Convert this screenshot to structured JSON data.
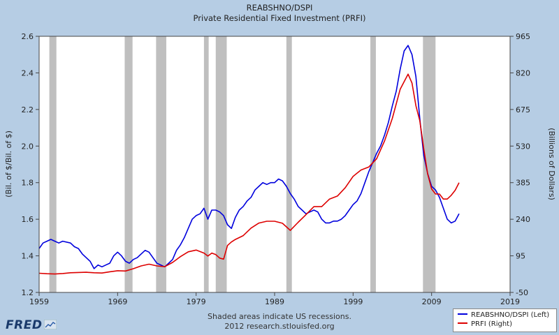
{
  "colors": {
    "background": "#b6cde4",
    "plot_bg": "#ffffff",
    "recession": "#bfbfbf",
    "left_series": "#0000dd",
    "right_series": "#dd0000"
  },
  "footer": {
    "line1": "Shaded areas indicate US recessions.",
    "line2": "2012 research.stlouisfed.org"
  },
  "logo": {
    "text": "FRED",
    "icon": "line-chart-icon"
  },
  "chart_data": {
    "type": "line",
    "title": "REABSHNO/DSPI",
    "subtitle": "Private Residential Fixed Investment (PRFI)",
    "ylabel_left": "(Bil. of $/Bil. of $)",
    "ylabel_right": "(Billions of Dollars)",
    "x_range": [
      1959,
      2019
    ],
    "y_left_range": [
      1.2,
      2.6
    ],
    "y_right_range": [
      -50,
      965
    ],
    "x_ticks": [
      "1959",
      "1969",
      "1979",
      "1989",
      "1999",
      "2009",
      "2019"
    ],
    "x_tick_values": [
      1959,
      1969,
      1979,
      1989,
      1999,
      2009,
      2019
    ],
    "y_left_ticks": [
      "1.2",
      "1.4",
      "1.6",
      "1.8",
      "2.0",
      "2.2",
      "2.4",
      "2.6"
    ],
    "y_left_tick_values": [
      1.2,
      1.4,
      1.6,
      1.8,
      2.0,
      2.2,
      2.4,
      2.6
    ],
    "y_right_ticks": [
      "-50",
      "95",
      "240",
      "385",
      "530",
      "675",
      "820",
      "965"
    ],
    "y_right_tick_values": [
      -50,
      95,
      240,
      385,
      530,
      675,
      820,
      965
    ],
    "recessions": [
      [
        1960.3,
        1961.2
      ],
      [
        1969.9,
        1970.9
      ],
      [
        1973.9,
        1975.2
      ],
      [
        1980.0,
        1980.6
      ],
      [
        1981.5,
        1982.9
      ],
      [
        1990.5,
        1991.2
      ],
      [
        2001.2,
        2001.9
      ],
      [
        2007.9,
        2009.5
      ]
    ],
    "legend": [
      "REABSHNO/DSPI (Left)",
      "PRFI (Right)"
    ],
    "series": [
      {
        "name": "REABSHNO/DSPI (Left)",
        "axis": "left",
        "points": [
          [
            1959.0,
            1.44
          ],
          [
            1959.5,
            1.47
          ],
          [
            1960.0,
            1.48
          ],
          [
            1960.5,
            1.49
          ],
          [
            1961.0,
            1.48
          ],
          [
            1961.5,
            1.47
          ],
          [
            1962.0,
            1.48
          ],
          [
            1963.0,
            1.47
          ],
          [
            1963.5,
            1.45
          ],
          [
            1964.0,
            1.44
          ],
          [
            1964.5,
            1.41
          ],
          [
            1965.0,
            1.39
          ],
          [
            1965.5,
            1.37
          ],
          [
            1966.0,
            1.33
          ],
          [
            1966.5,
            1.35
          ],
          [
            1967.0,
            1.34
          ],
          [
            1967.5,
            1.35
          ],
          [
            1968.0,
            1.36
          ],
          [
            1968.5,
            1.4
          ],
          [
            1969.0,
            1.42
          ],
          [
            1969.5,
            1.4
          ],
          [
            1970.0,
            1.37
          ],
          [
            1970.5,
            1.36
          ],
          [
            1971.0,
            1.38
          ],
          [
            1971.5,
            1.39
          ],
          [
            1972.0,
            1.41
          ],
          [
            1972.5,
            1.43
          ],
          [
            1973.0,
            1.42
          ],
          [
            1973.5,
            1.39
          ],
          [
            1974.0,
            1.36
          ],
          [
            1974.5,
            1.35
          ],
          [
            1975.0,
            1.34
          ],
          [
            1975.5,
            1.36
          ],
          [
            1976.0,
            1.38
          ],
          [
            1976.5,
            1.43
          ],
          [
            1977.0,
            1.46
          ],
          [
            1977.5,
            1.5
          ],
          [
            1978.0,
            1.55
          ],
          [
            1978.5,
            1.6
          ],
          [
            1979.0,
            1.62
          ],
          [
            1979.5,
            1.63
          ],
          [
            1980.0,
            1.66
          ],
          [
            1980.5,
            1.6
          ],
          [
            1981.0,
            1.65
          ],
          [
            1981.5,
            1.65
          ],
          [
            1982.0,
            1.64
          ],
          [
            1982.5,
            1.62
          ],
          [
            1983.0,
            1.57
          ],
          [
            1983.5,
            1.55
          ],
          [
            1984.0,
            1.61
          ],
          [
            1984.5,
            1.65
          ],
          [
            1985.0,
            1.67
          ],
          [
            1985.5,
            1.7
          ],
          [
            1986.0,
            1.72
          ],
          [
            1986.5,
            1.76
          ],
          [
            1987.0,
            1.78
          ],
          [
            1987.5,
            1.8
          ],
          [
            1988.0,
            1.79
          ],
          [
            1988.5,
            1.8
          ],
          [
            1989.0,
            1.8
          ],
          [
            1989.5,
            1.82
          ],
          [
            1990.0,
            1.81
          ],
          [
            1990.5,
            1.78
          ],
          [
            1991.0,
            1.74
          ],
          [
            1991.5,
            1.71
          ],
          [
            1992.0,
            1.67
          ],
          [
            1992.5,
            1.65
          ],
          [
            1993.0,
            1.63
          ],
          [
            1993.5,
            1.64
          ],
          [
            1994.0,
            1.65
          ],
          [
            1994.5,
            1.64
          ],
          [
            1995.0,
            1.6
          ],
          [
            1995.5,
            1.58
          ],
          [
            1996.0,
            1.58
          ],
          [
            1996.5,
            1.59
          ],
          [
            1997.0,
            1.59
          ],
          [
            1997.5,
            1.6
          ],
          [
            1998.0,
            1.62
          ],
          [
            1998.5,
            1.65
          ],
          [
            1999.0,
            1.68
          ],
          [
            1999.5,
            1.7
          ],
          [
            2000.0,
            1.74
          ],
          [
            2000.5,
            1.8
          ],
          [
            2001.0,
            1.86
          ],
          [
            2001.5,
            1.91
          ],
          [
            2002.0,
            1.96
          ],
          [
            2002.5,
            2.0
          ],
          [
            2003.0,
            2.06
          ],
          [
            2003.5,
            2.13
          ],
          [
            2004.0,
            2.22
          ],
          [
            2004.5,
            2.3
          ],
          [
            2005.0,
            2.42
          ],
          [
            2005.5,
            2.52
          ],
          [
            2006.0,
            2.55
          ],
          [
            2006.5,
            2.5
          ],
          [
            2007.0,
            2.38
          ],
          [
            2007.5,
            2.15
          ],
          [
            2008.0,
            1.95
          ],
          [
            2008.5,
            1.85
          ],
          [
            2009.0,
            1.78
          ],
          [
            2009.5,
            1.76
          ],
          [
            2010.0,
            1.72
          ],
          [
            2010.5,
            1.66
          ],
          [
            2011.0,
            1.6
          ],
          [
            2011.5,
            1.58
          ],
          [
            2012.0,
            1.59
          ],
          [
            2012.5,
            1.63
          ]
        ]
      },
      {
        "name": "PRFI (Right)",
        "axis": "right",
        "points": [
          [
            1959.0,
            26
          ],
          [
            1960.0,
            24
          ],
          [
            1961.0,
            23
          ],
          [
            1962.0,
            25
          ],
          [
            1963.0,
            28
          ],
          [
            1964.0,
            29
          ],
          [
            1965.0,
            30
          ],
          [
            1966.0,
            28
          ],
          [
            1967.0,
            27
          ],
          [
            1968.0,
            32
          ],
          [
            1969.0,
            36
          ],
          [
            1970.0,
            35
          ],
          [
            1971.0,
            44
          ],
          [
            1972.0,
            55
          ],
          [
            1973.0,
            62
          ],
          [
            1974.0,
            55
          ],
          [
            1975.0,
            52
          ],
          [
            1976.0,
            69
          ],
          [
            1977.0,
            92
          ],
          [
            1978.0,
            111
          ],
          [
            1979.0,
            118
          ],
          [
            1980.0,
            106
          ],
          [
            1980.5,
            94
          ],
          [
            1981.0,
            106
          ],
          [
            1981.5,
            100
          ],
          [
            1982.0,
            86
          ],
          [
            1982.5,
            82
          ],
          [
            1983.0,
            136
          ],
          [
            1983.5,
            150
          ],
          [
            1984.0,
            160
          ],
          [
            1985.0,
            175
          ],
          [
            1986.0,
            205
          ],
          [
            1987.0,
            225
          ],
          [
            1988.0,
            232
          ],
          [
            1989.0,
            232
          ],
          [
            1990.0,
            224
          ],
          [
            1991.0,
            196
          ],
          [
            1992.0,
            228
          ],
          [
            1993.0,
            258
          ],
          [
            1994.0,
            290
          ],
          [
            1995.0,
            290
          ],
          [
            1996.0,
            320
          ],
          [
            1997.0,
            332
          ],
          [
            1998.0,
            365
          ],
          [
            1999.0,
            410
          ],
          [
            2000.0,
            435
          ],
          [
            2001.0,
            447
          ],
          [
            2002.0,
            480
          ],
          [
            2003.0,
            550
          ],
          [
            2004.0,
            640
          ],
          [
            2005.0,
            755
          ],
          [
            2006.0,
            815
          ],
          [
            2006.5,
            780
          ],
          [
            2007.0,
            690
          ],
          [
            2007.5,
            630
          ],
          [
            2008.0,
            520
          ],
          [
            2008.5,
            420
          ],
          [
            2009.0,
            360
          ],
          [
            2009.5,
            340
          ],
          [
            2010.0,
            340
          ],
          [
            2010.5,
            320
          ],
          [
            2011.0,
            320
          ],
          [
            2011.5,
            335
          ],
          [
            2012.0,
            355
          ],
          [
            2012.5,
            385
          ]
        ]
      }
    ]
  }
}
